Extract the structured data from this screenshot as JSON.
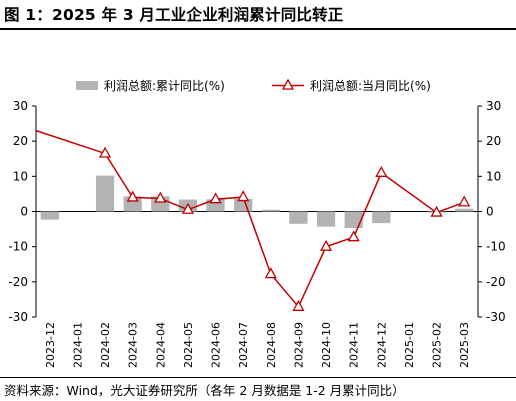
{
  "title": "图 1：2025 年 3 月工业企业利润累计同比转正",
  "source": "资料来源：Wind，光大证券研究所（各年 2 月数据是 1-2 月累计同比）",
  "colors": {
    "bar": "#b3b3b3",
    "line": "#c00000",
    "axis": "#000000"
  },
  "chart_data": {
    "type": "bar",
    "categories": [
      "2023-12",
      "2024-01",
      "2024-02",
      "2024-03",
      "2024-04",
      "2024-05",
      "2024-06",
      "2024-07",
      "2024-08",
      "2024-09",
      "2024-10",
      "2024-11",
      "2024-12",
      "2025-01",
      "2025-02",
      "2025-03"
    ],
    "series": [
      {
        "name": "利润总额:累计同比(%)",
        "type": "bar",
        "values": [
          -2.3,
          null,
          10.2,
          4.3,
          4.3,
          3.4,
          3.5,
          3.6,
          0.5,
          -3.5,
          -4.3,
          -4.7,
          -3.3,
          null,
          -0.3,
          0.8
        ]
      },
      {
        "name": "利润总额:当月同比(%)",
        "type": "line",
        "values": [
          23.0,
          null,
          16.5,
          4.0,
          3.7,
          0.5,
          3.5,
          4.1,
          -17.8,
          -27.1,
          -10.0,
          -7.3,
          11.0,
          null,
          -0.3,
          2.6
        ]
      }
    ],
    "ylim": [
      -30,
      30
    ],
    "yticks": [
      -30,
      -20,
      -10,
      0,
      10,
      20,
      30
    ],
    "y2ticks": [
      -30,
      -20,
      -10,
      0,
      10,
      20,
      30
    ],
    "legend": "top-center",
    "grid": false
  }
}
